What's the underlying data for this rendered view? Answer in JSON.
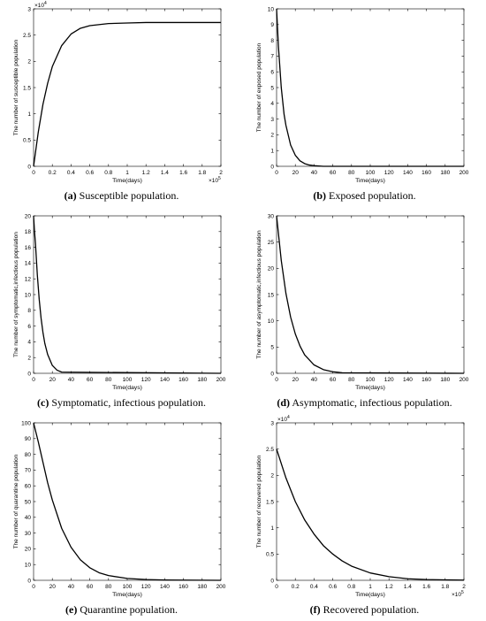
{
  "chart_data": [
    {
      "id": "a",
      "type": "line",
      "caption_letter": "(a)",
      "caption_text": " Susceptible population.",
      "xlabel": "Time(days)",
      "ylabel": "The number of susceptible population",
      "xlim": [
        0,
        2
      ],
      "ylim": [
        0,
        3
      ],
      "xticks": [
        0,
        0.2,
        0.4,
        0.6,
        0.8,
        1,
        1.2,
        1.4,
        1.6,
        1.8,
        2
      ],
      "xtick_labels": [
        "0",
        "0.2",
        "0.4",
        "0.6",
        "0.8",
        "1",
        "1.2",
        "1.4",
        "1.6",
        "1.8",
        "2"
      ],
      "yticks": [
        0,
        0.5,
        1,
        1.5,
        2,
        2.5,
        3
      ],
      "ytick_labels": [
        "0",
        "0.5",
        "1",
        "1.5",
        "2",
        "2.5",
        "3"
      ],
      "x_multiplier": "×10",
      "x_multiplier_exp": "5",
      "y_multiplier": "×10",
      "y_multiplier_exp": "4",
      "series": [
        {
          "x": [
            0,
            0.05,
            0.1,
            0.15,
            0.2,
            0.3,
            0.4,
            0.5,
            0.6,
            0.8,
            1.0,
            1.2,
            1.4,
            1.6,
            1.8,
            2.0
          ],
          "y": [
            0,
            0.65,
            1.18,
            1.58,
            1.9,
            2.3,
            2.52,
            2.63,
            2.68,
            2.72,
            2.73,
            2.74,
            2.74,
            2.74,
            2.74,
            2.74
          ]
        }
      ]
    },
    {
      "id": "b",
      "type": "line",
      "caption_letter": "(b)",
      "caption_text": " Exposed population.",
      "xlabel": "Time(days)",
      "ylabel": "The number of exposed population",
      "xlim": [
        0,
        200
      ],
      "ylim": [
        0,
        10
      ],
      "xticks": [
        0,
        20,
        40,
        60,
        80,
        100,
        120,
        140,
        160,
        180,
        200
      ],
      "xtick_labels": [
        "0",
        "20",
        "40",
        "60",
        "80",
        "100",
        "120",
        "140",
        "160",
        "180",
        "200"
      ],
      "yticks": [
        0,
        1,
        2,
        3,
        4,
        5,
        6,
        7,
        8,
        9,
        10
      ],
      "ytick_labels": [
        "0",
        "1",
        "2",
        "3",
        "4",
        "5",
        "6",
        "7",
        "8",
        "9",
        "10"
      ],
      "series": [
        {
          "x": [
            0,
            2,
            5,
            8,
            10,
            15,
            20,
            25,
            30,
            35,
            40,
            50,
            200
          ],
          "y": [
            10,
            7.6,
            5.0,
            3.3,
            2.6,
            1.35,
            0.7,
            0.35,
            0.17,
            0.08,
            0.04,
            0,
            0
          ]
        }
      ]
    },
    {
      "id": "c",
      "type": "line",
      "caption_letter": "(c)",
      "caption_text": " Symptomatic, infectious population.",
      "xlabel": "Time(days)",
      "ylabel": "The number of symptomatic,infectious population",
      "xlim": [
        0,
        200
      ],
      "ylim": [
        0,
        20
      ],
      "xticks": [
        0,
        20,
        40,
        60,
        80,
        100,
        120,
        140,
        160,
        180,
        200
      ],
      "xtick_labels": [
        "0",
        "20",
        "40",
        "60",
        "80",
        "100",
        "120",
        "140",
        "160",
        "180",
        "200"
      ],
      "yticks": [
        0,
        2,
        4,
        6,
        8,
        10,
        12,
        14,
        16,
        18,
        20
      ],
      "ytick_labels": [
        "0",
        "2",
        "4",
        "6",
        "8",
        "10",
        "12",
        "14",
        "16",
        "18",
        "20"
      ],
      "series": [
        {
          "x": [
            0,
            1,
            2,
            4,
            6,
            8,
            10,
            12,
            15,
            20,
            25,
            30,
            200
          ],
          "y": [
            20,
            18,
            16.5,
            12.5,
            9.4,
            7.0,
            5.2,
            3.8,
            2.4,
            1.0,
            0.4,
            0.15,
            0
          ]
        }
      ]
    },
    {
      "id": "d",
      "type": "line",
      "caption_letter": "(d)",
      "caption_text": " Asymptomatic, infectious population.",
      "xlabel": "Time(days)",
      "ylabel": "The number of asymptomatic,infectious population",
      "xlim": [
        0,
        200
      ],
      "ylim": [
        0,
        30
      ],
      "xticks": [
        0,
        20,
        40,
        60,
        80,
        100,
        120,
        140,
        160,
        180,
        200
      ],
      "xtick_labels": [
        "0",
        "20",
        "40",
        "60",
        "80",
        "100",
        "120",
        "140",
        "160",
        "180",
        "200"
      ],
      "yticks": [
        0,
        5,
        10,
        15,
        20,
        25,
        30
      ],
      "ytick_labels": [
        "0",
        "5",
        "10",
        "15",
        "20",
        "25",
        "30"
      ],
      "series": [
        {
          "x": [
            0,
            5,
            10,
            15,
            20,
            25,
            30,
            40,
            50,
            60,
            70,
            200
          ],
          "y": [
            30,
            21.5,
            15.2,
            10.7,
            7.5,
            5.2,
            3.5,
            1.6,
            0.7,
            0.3,
            0.1,
            0
          ]
        }
      ]
    },
    {
      "id": "e",
      "type": "line",
      "caption_letter": "(e)",
      "caption_text": " Quarantine population.",
      "xlabel": "Time(days)",
      "ylabel": "The number of quarantine population",
      "xlim": [
        0,
        200
      ],
      "ylim": [
        0,
        100
      ],
      "xticks": [
        0,
        20,
        40,
        60,
        80,
        100,
        120,
        140,
        160,
        180,
        200
      ],
      "xtick_labels": [
        "0",
        "20",
        "40",
        "60",
        "80",
        "100",
        "120",
        "140",
        "160",
        "180",
        "200"
      ],
      "yticks": [
        0,
        10,
        20,
        30,
        40,
        50,
        60,
        70,
        80,
        90,
        100
      ],
      "ytick_labels": [
        "0",
        "10",
        "20",
        "30",
        "40",
        "50",
        "60",
        "70",
        "80",
        "90",
        "100"
      ],
      "series": [
        {
          "x": [
            0,
            5,
            10,
            15,
            20,
            30,
            40,
            50,
            60,
            70,
            80,
            100,
            120,
            140,
            200
          ],
          "y": [
            100,
            88,
            75,
            62,
            51,
            33,
            21,
            13,
            8,
            4.8,
            3,
            1.2,
            0.5,
            0.2,
            0
          ]
        }
      ]
    },
    {
      "id": "f",
      "type": "line",
      "caption_letter": "(f)",
      "caption_text": " Recovered population.",
      "xlabel": "Time(days)",
      "ylabel": "The number of recovered population",
      "xlim": [
        0,
        2
      ],
      "ylim": [
        0,
        3
      ],
      "xticks": [
        0,
        0.2,
        0.4,
        0.6,
        0.8,
        1,
        1.2,
        1.4,
        1.6,
        1.8,
        2
      ],
      "xtick_labels": [
        "0",
        "0.2",
        "0.4",
        "0.6",
        "0.8",
        "1",
        "1.2",
        "1.4",
        "1.6",
        "1.8",
        "2"
      ],
      "yticks": [
        0,
        0.5,
        1,
        1.5,
        2,
        2.5,
        3
      ],
      "ytick_labels": [
        "0",
        "0.5",
        "1",
        "1.5",
        "2",
        "2.5",
        "3"
      ],
      "x_multiplier": "×10",
      "x_multiplier_exp": "5",
      "y_multiplier": "×10",
      "y_multiplier_exp": "4",
      "series": [
        {
          "x": [
            0,
            0.1,
            0.2,
            0.3,
            0.4,
            0.5,
            0.6,
            0.7,
            0.8,
            1.0,
            1.2,
            1.4,
            1.6,
            1.8,
            2.0
          ],
          "y": [
            2.5,
            1.95,
            1.5,
            1.15,
            0.88,
            0.66,
            0.5,
            0.37,
            0.27,
            0.14,
            0.07,
            0.03,
            0.015,
            0.008,
            0.004
          ]
        }
      ]
    }
  ]
}
